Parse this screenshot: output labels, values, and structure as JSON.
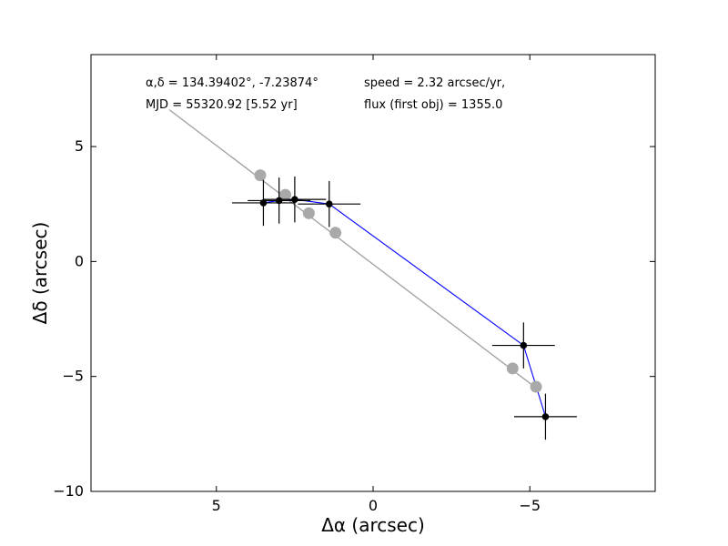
{
  "chart_data": {
    "type": "scatter",
    "xlabel": "Δα (arcsec)",
    "ylabel": "Δδ (arcsec)",
    "xlim": [
      9,
      -9
    ],
    "ylim": [
      -10,
      9
    ],
    "x_ticks": [
      5,
      0,
      -5
    ],
    "y_ticks": [
      5,
      0,
      -5,
      -10
    ],
    "x_tick_labels": [
      "5",
      "0",
      "−5"
    ],
    "y_tick_labels": [
      "5",
      "0",
      "−5",
      "−10"
    ],
    "grid": false,
    "annotations": {
      "radec": "α,δ = 134.39402°, -7.23874°",
      "mjd": "MJD = 55320.92 [5.52 yr]",
      "speed": "speed = 2.32 arcsec/yr,",
      "flux": "flux (first obj) = 1355.0"
    },
    "series": [
      {
        "kind": "fit-line",
        "color": "#a0a0a0",
        "x": [
          6.5,
          -5.2
        ],
        "y": [
          6.6,
          -5.5
        ]
      },
      {
        "kind": "predicted-points",
        "color": "#a9a9a9",
        "x": [
          3.6,
          2.8,
          2.05,
          1.2,
          -4.45,
          -5.2
        ],
        "y": [
          3.75,
          2.9,
          2.1,
          1.25,
          -4.65,
          -5.45
        ]
      },
      {
        "kind": "observed-points",
        "line_color": "#0000ff",
        "marker_color": "#000000",
        "x": [
          3.5,
          3.0,
          2.5,
          1.4,
          -4.8,
          -5.5
        ],
        "y": [
          2.55,
          2.65,
          2.7,
          2.5,
          -3.65,
          -6.75
        ],
        "x_err": [
          1.0,
          1.0,
          1.0,
          1.0,
          1.0,
          1.0
        ],
        "y_err": [
          1.0,
          1.0,
          1.0,
          1.0,
          1.0,
          1.0
        ]
      }
    ]
  }
}
